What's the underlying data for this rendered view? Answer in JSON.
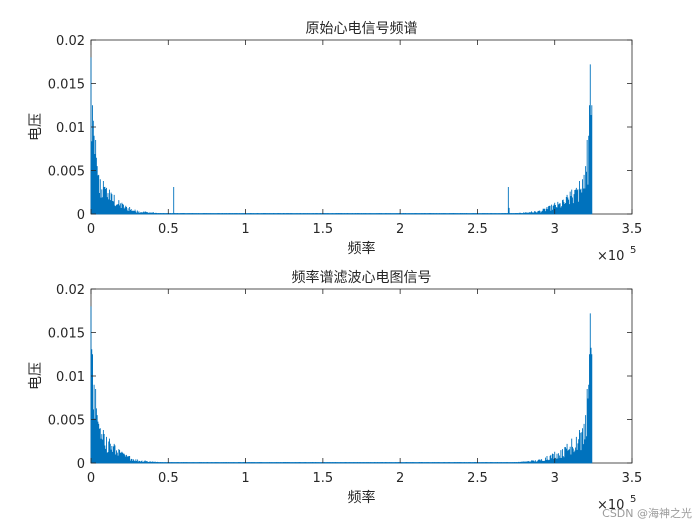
{
  "chart_data": [
    {
      "type": "area",
      "title": "原始心电信号频谱",
      "xlabel": "频率",
      "ylabel": "电压",
      "xlim": [
        0,
        350000
      ],
      "ylim": [
        0,
        0.02
      ],
      "x_ticks": [
        0,
        50000,
        100000,
        150000,
        200000,
        250000,
        300000,
        350000
      ],
      "x_tick_labels": [
        "0",
        "0.5",
        "1",
        "1.5",
        "2",
        "2.5",
        "3",
        "3.5"
      ],
      "y_ticks": [
        0,
        0.005,
        0.01,
        0.015,
        0.02
      ],
      "y_tick_labels": [
        "0",
        "0.005",
        "0.01",
        "0.015",
        "0.02"
      ],
      "x_exponent_base": "×10",
      "x_exponent": "5",
      "series": [
        {
          "color": "#0072BD",
          "x": [
            0,
            1000,
            2000,
            3000,
            4000,
            5000,
            6000,
            8000,
            10000,
            12000,
            15000,
            18000,
            20000,
            25000,
            30000,
            35000,
            40000,
            45000,
            50000,
            53000,
            53500,
            54000,
            56000,
            60000,
            100000,
            150000,
            200000,
            250000,
            268000,
            269500,
            270000,
            271000,
            275000,
            280000,
            285000,
            290000,
            295000,
            300000,
            305000,
            308000,
            311000,
            314000,
            316000,
            318000,
            319000,
            320000,
            321000,
            322000,
            322500,
            323000,
            324000
          ],
          "values": [
            0.018,
            0.0125,
            0.009,
            0.0085,
            0.0055,
            0.0045,
            0.004,
            0.0038,
            0.003,
            0.0028,
            0.0022,
            0.0016,
            0.0013,
            0.0008,
            0.0004,
            0.0003,
            0.0002,
            0.0001,
            0.0001,
            0.0001,
            0.0031,
            0.0001,
            0.0001,
            0.0001,
            0.0001,
            0.0001,
            0.0001,
            0.0001,
            0.0001,
            0.0001,
            0.0031,
            0.0001,
            0.0001,
            0.0002,
            0.0003,
            0.0004,
            0.0008,
            0.0013,
            0.0016,
            0.0022,
            0.0028,
            0.003,
            0.0038,
            0.004,
            0.0045,
            0.0055,
            0.0085,
            0.009,
            0.0125,
            0.0172,
            0.0125
          ]
        }
      ]
    },
    {
      "type": "area",
      "title": "频率谱滤波心电图信号",
      "xlabel": "频率",
      "ylabel": "电压",
      "xlim": [
        0,
        350000
      ],
      "ylim": [
        0,
        0.02
      ],
      "x_ticks": [
        0,
        50000,
        100000,
        150000,
        200000,
        250000,
        300000,
        350000
      ],
      "x_tick_labels": [
        "0",
        "0.5",
        "1",
        "1.5",
        "2",
        "2.5",
        "3",
        "3.5"
      ],
      "y_ticks": [
        0,
        0.005,
        0.01,
        0.015,
        0.02
      ],
      "y_tick_labels": [
        "0",
        "0.005",
        "0.01",
        "0.015",
        "0.02"
      ],
      "x_exponent_base": "×10",
      "x_exponent": "5",
      "series": [
        {
          "color": "#0072BD",
          "x": [
            0,
            1000,
            2000,
            3000,
            4000,
            5000,
            6000,
            8000,
            10000,
            12000,
            15000,
            18000,
            20000,
            25000,
            30000,
            35000,
            40000,
            45000,
            50000,
            60000,
            100000,
            150000,
            200000,
            250000,
            275000,
            280000,
            285000,
            290000,
            295000,
            300000,
            305000,
            308000,
            311000,
            314000,
            316000,
            318000,
            319000,
            320000,
            321000,
            322000,
            322500,
            323000,
            324000
          ],
          "values": [
            0.018,
            0.0125,
            0.009,
            0.0085,
            0.0055,
            0.0045,
            0.004,
            0.0038,
            0.003,
            0.0028,
            0.0022,
            0.0016,
            0.0013,
            0.0008,
            0.0004,
            0.0003,
            0.0002,
            0.0001,
            0.0001,
            0.0001,
            0.0001,
            0.0001,
            0.0001,
            0.0001,
            0.0001,
            0.0002,
            0.0003,
            0.0004,
            0.0008,
            0.0013,
            0.0016,
            0.0022,
            0.0028,
            0.003,
            0.0038,
            0.004,
            0.0045,
            0.0055,
            0.0085,
            0.009,
            0.0125,
            0.0172,
            0.0125
          ]
        }
      ]
    }
  ],
  "watermark": "CSDN @海神之光"
}
